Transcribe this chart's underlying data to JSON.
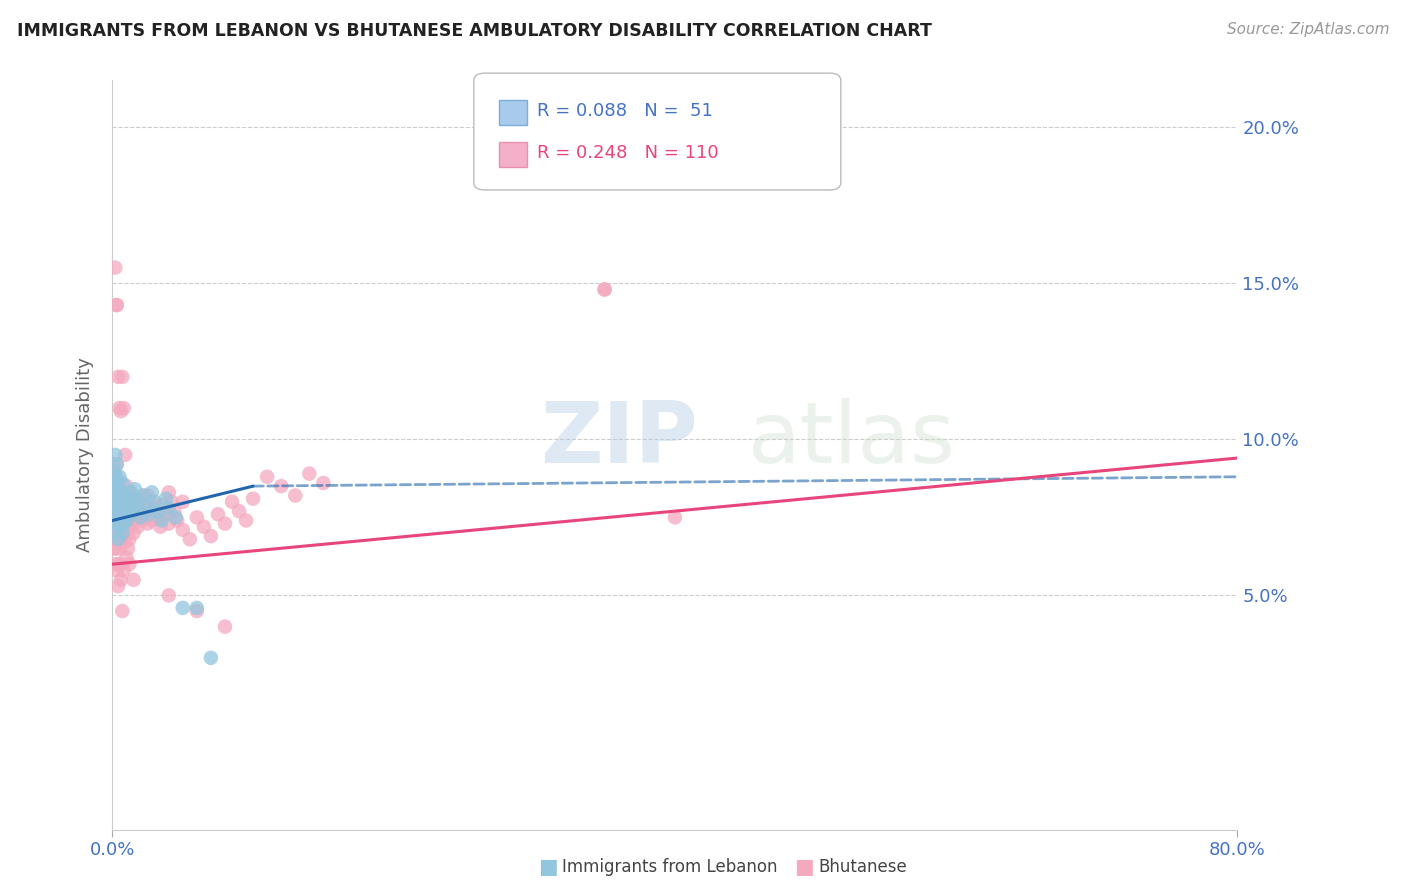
{
  "title": "IMMIGRANTS FROM LEBANON VS BHUTANESE AMBULATORY DISABILITY CORRELATION CHART",
  "source": "Source: ZipAtlas.com",
  "ylabel": "Ambulatory Disability",
  "yticks": [
    0.0,
    0.05,
    0.1,
    0.15,
    0.2
  ],
  "ytick_labels": [
    "",
    "5.0%",
    "10.0%",
    "15.0%",
    "20.0%"
  ],
  "xlim": [
    0.0,
    0.8
  ],
  "ylim": [
    -0.025,
    0.215
  ],
  "color_blue": "#92c5de",
  "color_pink": "#f4a9be",
  "color_line_blue": "#2166ac",
  "color_line_pink": "#e8457a",
  "color_axis": "#4472c4",
  "color_grid": "#cccccc",
  "watermark": "ZIPatlas",
  "lebanon_x": [
    0.001,
    0.001,
    0.001,
    0.001,
    0.002,
    0.002,
    0.002,
    0.002,
    0.002,
    0.003,
    0.003,
    0.003,
    0.003,
    0.004,
    0.004,
    0.004,
    0.005,
    0.005,
    0.005,
    0.006,
    0.006,
    0.007,
    0.007,
    0.007,
    0.008,
    0.008,
    0.009,
    0.01,
    0.01,
    0.011,
    0.012,
    0.013,
    0.014,
    0.015,
    0.016,
    0.017,
    0.018,
    0.02,
    0.022,
    0.024,
    0.026,
    0.028,
    0.03,
    0.032,
    0.035,
    0.038,
    0.04,
    0.045,
    0.05,
    0.06,
    0.07
  ],
  "lebanon_y": [
    0.075,
    0.08,
    0.085,
    0.09,
    0.07,
    0.078,
    0.082,
    0.088,
    0.095,
    0.073,
    0.079,
    0.086,
    0.092,
    0.068,
    0.076,
    0.084,
    0.072,
    0.08,
    0.088,
    0.075,
    0.083,
    0.07,
    0.078,
    0.086,
    0.073,
    0.081,
    0.077,
    0.074,
    0.082,
    0.079,
    0.076,
    0.083,
    0.08,
    0.077,
    0.084,
    0.081,
    0.078,
    0.075,
    0.082,
    0.079,
    0.076,
    0.083,
    0.08,
    0.077,
    0.074,
    0.081,
    0.078,
    0.075,
    0.046,
    0.046,
    0.03
  ],
  "bhutanese_x": [
    0.001,
    0.001,
    0.001,
    0.002,
    0.002,
    0.002,
    0.002,
    0.003,
    0.003,
    0.003,
    0.003,
    0.004,
    0.004,
    0.004,
    0.005,
    0.005,
    0.005,
    0.006,
    0.006,
    0.007,
    0.007,
    0.008,
    0.008,
    0.009,
    0.009,
    0.01,
    0.01,
    0.011,
    0.011,
    0.012,
    0.013,
    0.014,
    0.015,
    0.016,
    0.017,
    0.018,
    0.019,
    0.02,
    0.021,
    0.022,
    0.023,
    0.024,
    0.025,
    0.026,
    0.027,
    0.028,
    0.03,
    0.032,
    0.034,
    0.036,
    0.038,
    0.04,
    0.042,
    0.044,
    0.046,
    0.05,
    0.055,
    0.06,
    0.065,
    0.07,
    0.075,
    0.08,
    0.085,
    0.09,
    0.095,
    0.1,
    0.11,
    0.12,
    0.13,
    0.14,
    0.15,
    0.003,
    0.004,
    0.005,
    0.006,
    0.007,
    0.008,
    0.009,
    0.01,
    0.011,
    0.012,
    0.013,
    0.015,
    0.018,
    0.022,
    0.025,
    0.03,
    0.035,
    0.04,
    0.05,
    0.35,
    0.002,
    0.003,
    0.005,
    0.007,
    0.35,
    0.4,
    0.04,
    0.06,
    0.08,
    0.001,
    0.002,
    0.003,
    0.004,
    0.005,
    0.006,
    0.008,
    0.01,
    0.012,
    0.015
  ],
  "bhutanese_y": [
    0.072,
    0.08,
    0.088,
    0.065,
    0.073,
    0.081,
    0.089,
    0.068,
    0.076,
    0.084,
    0.092,
    0.07,
    0.078,
    0.086,
    0.065,
    0.073,
    0.081,
    0.068,
    0.076,
    0.07,
    0.078,
    0.072,
    0.08,
    0.067,
    0.075,
    0.07,
    0.078,
    0.065,
    0.073,
    0.068,
    0.076,
    0.073,
    0.07,
    0.078,
    0.075,
    0.072,
    0.08,
    0.077,
    0.074,
    0.082,
    0.079,
    0.076,
    0.073,
    0.08,
    0.077,
    0.074,
    0.078,
    0.075,
    0.072,
    0.079,
    0.076,
    0.073,
    0.08,
    0.077,
    0.074,
    0.071,
    0.068,
    0.075,
    0.072,
    0.069,
    0.076,
    0.073,
    0.08,
    0.077,
    0.074,
    0.081,
    0.088,
    0.085,
    0.082,
    0.089,
    0.086,
    0.143,
    0.12,
    0.11,
    0.109,
    0.12,
    0.11,
    0.095,
    0.085,
    0.082,
    0.083,
    0.077,
    0.074,
    0.078,
    0.075,
    0.082,
    0.079,
    0.076,
    0.083,
    0.08,
    0.148,
    0.155,
    0.143,
    0.06,
    0.045,
    0.148,
    0.075,
    0.05,
    0.045,
    0.04,
    0.065,
    0.06,
    0.058,
    0.053,
    0.06,
    0.055,
    0.058,
    0.062,
    0.06,
    0.055
  ],
  "trend_blue_x0": 0.0,
  "trend_blue_x1": 0.1,
  "trend_blue_y0": 0.074,
  "trend_blue_y1": 0.085,
  "trend_blue_dash_x0": 0.1,
  "trend_blue_dash_x1": 0.8,
  "trend_blue_dash_y0": 0.085,
  "trend_blue_dash_y1": 0.088,
  "trend_pink_x0": 0.0,
  "trend_pink_x1": 0.8,
  "trend_pink_y0": 0.06,
  "trend_pink_y1": 0.094
}
